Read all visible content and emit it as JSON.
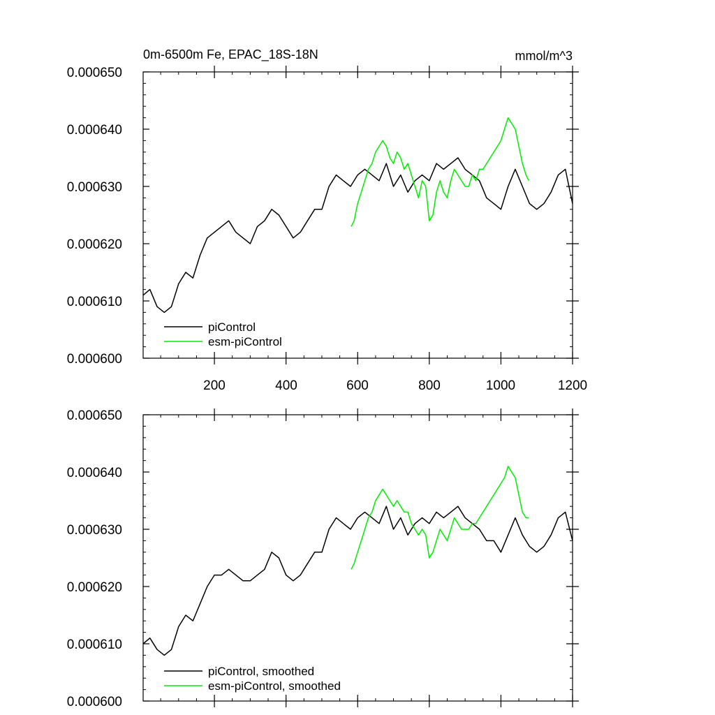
{
  "chart_data": [
    {
      "type": "line",
      "title": "0m-6500m Fe, EPAC_18S-18N",
      "units": "mmol/m^3",
      "xlabel": "",
      "ylabel": "",
      "xlim": [
        1,
        1200
      ],
      "ylim": [
        0.0006,
        0.00065
      ],
      "xticks": [
        200,
        400,
        600,
        800,
        1000,
        1200
      ],
      "xtick_labels": [
        "200",
        "400",
        "600",
        "800",
        "1000",
        "1200"
      ],
      "yticks": [
        0.0006,
        0.00061,
        0.00062,
        0.00063,
        0.00064,
        0.00065
      ],
      "ytick_labels": [
        "0.000600",
        "0.000610",
        "0.000620",
        "0.000630",
        "0.000640",
        "0.000650"
      ],
      "legend": "bottom-left",
      "series": [
        {
          "name": "piControl",
          "color": "#000000",
          "x": [
            1,
            20,
            40,
            60,
            80,
            100,
            120,
            140,
            160,
            180,
            200,
            220,
            240,
            260,
            280,
            300,
            320,
            340,
            360,
            380,
            400,
            420,
            440,
            460,
            480,
            500,
            520,
            540,
            560,
            580,
            600,
            620,
            640,
            660,
            680,
            700,
            720,
            740,
            760,
            780,
            800,
            820,
            840,
            860,
            880,
            900,
            920,
            940,
            960,
            980,
            1000,
            1020,
            1040,
            1060,
            1080,
            1100,
            1120,
            1140,
            1160,
            1180,
            1200
          ],
          "values": [
            0.000611,
            0.000612,
            0.000609,
            0.000608,
            0.000609,
            0.000613,
            0.000615,
            0.000614,
            0.000618,
            0.000621,
            0.000622,
            0.000623,
            0.000624,
            0.000622,
            0.000621,
            0.00062,
            0.000623,
            0.000624,
            0.000626,
            0.000625,
            0.000623,
            0.000621,
            0.000622,
            0.000624,
            0.000626,
            0.000626,
            0.00063,
            0.000632,
            0.000631,
            0.00063,
            0.000632,
            0.000633,
            0.000632,
            0.000631,
            0.000634,
            0.00063,
            0.000632,
            0.000629,
            0.000631,
            0.000632,
            0.000631,
            0.000634,
            0.000633,
            0.000634,
            0.000635,
            0.000633,
            0.000632,
            0.000631,
            0.000628,
            0.000627,
            0.000626,
            0.00063,
            0.000633,
            0.00063,
            0.000627,
            0.000626,
            0.000627,
            0.000629,
            0.000632,
            0.000633,
            0.000627
          ]
        },
        {
          "name": "esm-piControl",
          "color": "#00ee00",
          "x": [
            582,
            590,
            600,
            610,
            620,
            630,
            640,
            650,
            660,
            670,
            680,
            690,
            700,
            710,
            720,
            730,
            740,
            750,
            760,
            770,
            780,
            790,
            800,
            810,
            820,
            830,
            840,
            850,
            860,
            870,
            880,
            890,
            900,
            910,
            920,
            930,
            940,
            950,
            960,
            970,
            980,
            990,
            1000,
            1010,
            1020,
            1030,
            1040,
            1050,
            1060,
            1070,
            1078
          ],
          "values": [
            0.000623,
            0.000624,
            0.000627,
            0.000629,
            0.000631,
            0.000633,
            0.000634,
            0.000636,
            0.000637,
            0.000638,
            0.000637,
            0.000635,
            0.000634,
            0.000636,
            0.000635,
            0.000633,
            0.000634,
            0.000632,
            0.00063,
            0.000628,
            0.000631,
            0.00063,
            0.000624,
            0.000625,
            0.000629,
            0.000631,
            0.000629,
            0.000628,
            0.000631,
            0.000633,
            0.000632,
            0.000631,
            0.00063,
            0.00063,
            0.000632,
            0.000631,
            0.000633,
            0.000633,
            0.000634,
            0.000635,
            0.000636,
            0.000637,
            0.000638,
            0.00064,
            0.000642,
            0.000641,
            0.00064,
            0.000637,
            0.000634,
            0.000632,
            0.000631
          ]
        }
      ]
    },
    {
      "type": "line",
      "title": "",
      "units": "",
      "xlabel": "",
      "ylabel": "",
      "xlim": [
        1,
        1200
      ],
      "ylim": [
        0.0006,
        0.00065
      ],
      "xticks": [
        200,
        400,
        600,
        800,
        1000,
        1200
      ],
      "xtick_labels": [],
      "yticks": [
        0.0006,
        0.00061,
        0.00062,
        0.00063,
        0.00064,
        0.00065
      ],
      "ytick_labels": [
        "0.000600",
        "0.000610",
        "0.000620",
        "0.000630",
        "0.000640",
        "0.000650"
      ],
      "legend": "bottom-left",
      "series": [
        {
          "name": "piControl, smoothed",
          "color": "#000000",
          "x": [
            1,
            20,
            40,
            60,
            80,
            100,
            120,
            140,
            160,
            180,
            200,
            220,
            240,
            260,
            280,
            300,
            320,
            340,
            360,
            380,
            400,
            420,
            440,
            460,
            480,
            500,
            520,
            540,
            560,
            580,
            600,
            620,
            640,
            660,
            680,
            700,
            720,
            740,
            760,
            780,
            800,
            820,
            840,
            860,
            880,
            900,
            920,
            940,
            960,
            980,
            1000,
            1020,
            1040,
            1060,
            1080,
            1100,
            1120,
            1140,
            1160,
            1180,
            1200
          ],
          "values": [
            0.00061,
            0.000611,
            0.000609,
            0.000608,
            0.000609,
            0.000613,
            0.000615,
            0.000614,
            0.000617,
            0.00062,
            0.000622,
            0.000622,
            0.000623,
            0.000622,
            0.000621,
            0.000621,
            0.000622,
            0.000623,
            0.000626,
            0.000625,
            0.000622,
            0.000621,
            0.000622,
            0.000624,
            0.000626,
            0.000626,
            0.00063,
            0.000632,
            0.000631,
            0.00063,
            0.000632,
            0.000633,
            0.000632,
            0.000631,
            0.000634,
            0.00063,
            0.000632,
            0.000629,
            0.000631,
            0.000632,
            0.000631,
            0.000633,
            0.000632,
            0.000633,
            0.000634,
            0.000632,
            0.000631,
            0.00063,
            0.000628,
            0.000628,
            0.000626,
            0.000629,
            0.000632,
            0.000629,
            0.000627,
            0.000626,
            0.000627,
            0.000629,
            0.000632,
            0.000633,
            0.000628
          ]
        },
        {
          "name": "esm-piControl, smoothed",
          "color": "#00ee00",
          "x": [
            582,
            590,
            600,
            610,
            620,
            630,
            640,
            650,
            660,
            670,
            680,
            690,
            700,
            710,
            720,
            730,
            740,
            750,
            760,
            770,
            780,
            790,
            800,
            810,
            820,
            830,
            840,
            850,
            860,
            870,
            880,
            890,
            900,
            910,
            920,
            930,
            940,
            950,
            960,
            970,
            980,
            990,
            1000,
            1010,
            1020,
            1030,
            1040,
            1050,
            1060,
            1070,
            1078
          ],
          "values": [
            0.000623,
            0.000624,
            0.000626,
            0.000628,
            0.00063,
            0.000632,
            0.000633,
            0.000635,
            0.000636,
            0.000637,
            0.000636,
            0.000635,
            0.000634,
            0.000635,
            0.000634,
            0.000633,
            0.000633,
            0.000631,
            0.00063,
            0.000629,
            0.00063,
            0.000629,
            0.000625,
            0.000626,
            0.000628,
            0.00063,
            0.000629,
            0.000628,
            0.00063,
            0.000632,
            0.000631,
            0.00063,
            0.00063,
            0.00063,
            0.000631,
            0.000631,
            0.000632,
            0.000633,
            0.000634,
            0.000635,
            0.000636,
            0.000637,
            0.000638,
            0.000639,
            0.000641,
            0.00064,
            0.000639,
            0.000636,
            0.000633,
            0.000632,
            0.000632
          ]
        }
      ]
    }
  ]
}
